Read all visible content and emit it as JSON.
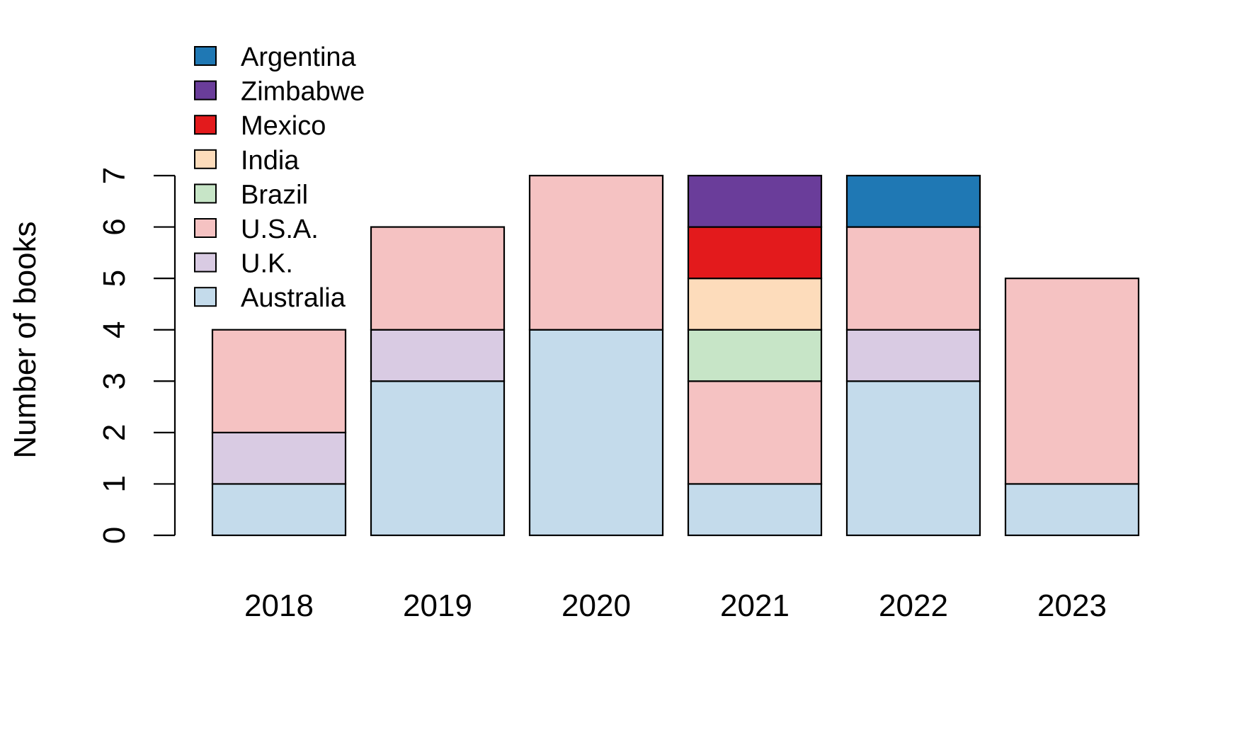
{
  "chart_data": {
    "type": "bar",
    "stacked": true,
    "title": "",
    "xlabel": "",
    "ylabel": "Number of books",
    "ylim": [
      0,
      7
    ],
    "yticks": [
      0,
      1,
      2,
      3,
      4,
      5,
      6,
      7
    ],
    "categories": [
      "2018",
      "2019",
      "2020",
      "2021",
      "2022",
      "2023"
    ],
    "series": [
      {
        "name": "Australia",
        "color": "#c4dbeb",
        "values": [
          1,
          3,
          4,
          1,
          3,
          1
        ]
      },
      {
        "name": "U.K.",
        "color": "#d9cbe3",
        "values": [
          1,
          1,
          0,
          0,
          1,
          0
        ]
      },
      {
        "name": "U.S.A.",
        "color": "#f5c2c2",
        "values": [
          2,
          2,
          3,
          2,
          2,
          4
        ]
      },
      {
        "name": "Brazil",
        "color": "#c7e5c7",
        "values": [
          0,
          0,
          0,
          1,
          0,
          0
        ]
      },
      {
        "name": "India",
        "color": "#fddcbb",
        "values": [
          0,
          0,
          0,
          1,
          0,
          0
        ]
      },
      {
        "name": "Mexico",
        "color": "#e31a1c",
        "values": [
          0,
          0,
          0,
          1,
          0,
          0
        ]
      },
      {
        "name": "Zimbabwe",
        "color": "#6a3d9a",
        "values": [
          0,
          0,
          0,
          1,
          0,
          0
        ]
      },
      {
        "name": "Argentina",
        "color": "#1f78b4",
        "values": [
          0,
          0,
          0,
          0,
          1,
          0
        ]
      }
    ],
    "legend": {
      "position": "top-left",
      "order": [
        "Argentina",
        "Zimbabwe",
        "Mexico",
        "India",
        "Brazil",
        "U.S.A.",
        "U.K.",
        "Australia"
      ]
    },
    "grid": false
  }
}
